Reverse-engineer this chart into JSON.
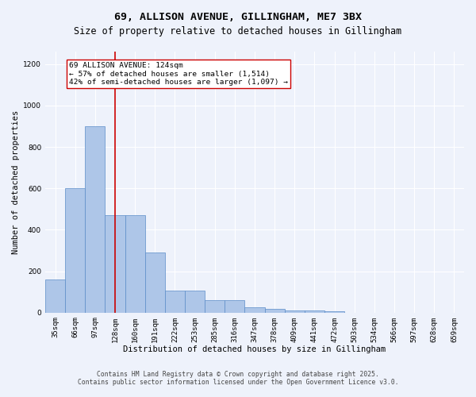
{
  "title_line1": "69, ALLISON AVENUE, GILLINGHAM, ME7 3BX",
  "title_line2": "Size of property relative to detached houses in Gillingham",
  "xlabel": "Distribution of detached houses by size in Gillingham",
  "ylabel": "Number of detached properties",
  "categories": [
    "35sqm",
    "66sqm",
    "97sqm",
    "128sqm",
    "160sqm",
    "191sqm",
    "222sqm",
    "253sqm",
    "285sqm",
    "316sqm",
    "347sqm",
    "378sqm",
    "409sqm",
    "441sqm",
    "472sqm",
    "503sqm",
    "534sqm",
    "566sqm",
    "597sqm",
    "628sqm",
    "659sqm"
  ],
  "values": [
    160,
    600,
    900,
    470,
    470,
    290,
    105,
    105,
    62,
    62,
    25,
    18,
    12,
    10,
    5,
    0,
    0,
    0,
    0,
    0,
    0
  ],
  "bar_color": "#aec6e8",
  "bar_edge_color": "#5b8cc8",
  "vline_x_index": 3,
  "vline_color": "#cc0000",
  "annotation_text": "69 ALLISON AVENUE: 124sqm\n← 57% of detached houses are smaller (1,514)\n42% of semi-detached houses are larger (1,097) →",
  "annotation_box_color": "#ffffff",
  "annotation_box_edge": "#cc0000",
  "ylim": [
    0,
    1260
  ],
  "yticks": [
    0,
    200,
    400,
    600,
    800,
    1000,
    1200
  ],
  "background_color": "#eef2fb",
  "grid_color": "#ffffff",
  "footer_line1": "Contains HM Land Registry data © Crown copyright and database right 2025.",
  "footer_line2": "Contains public sector information licensed under the Open Government Licence v3.0.",
  "title_fontsize": 9.5,
  "subtitle_fontsize": 8.5,
  "axis_label_fontsize": 7.5,
  "tick_fontsize": 6.5,
  "annotation_fontsize": 6.8,
  "footer_fontsize": 5.8
}
